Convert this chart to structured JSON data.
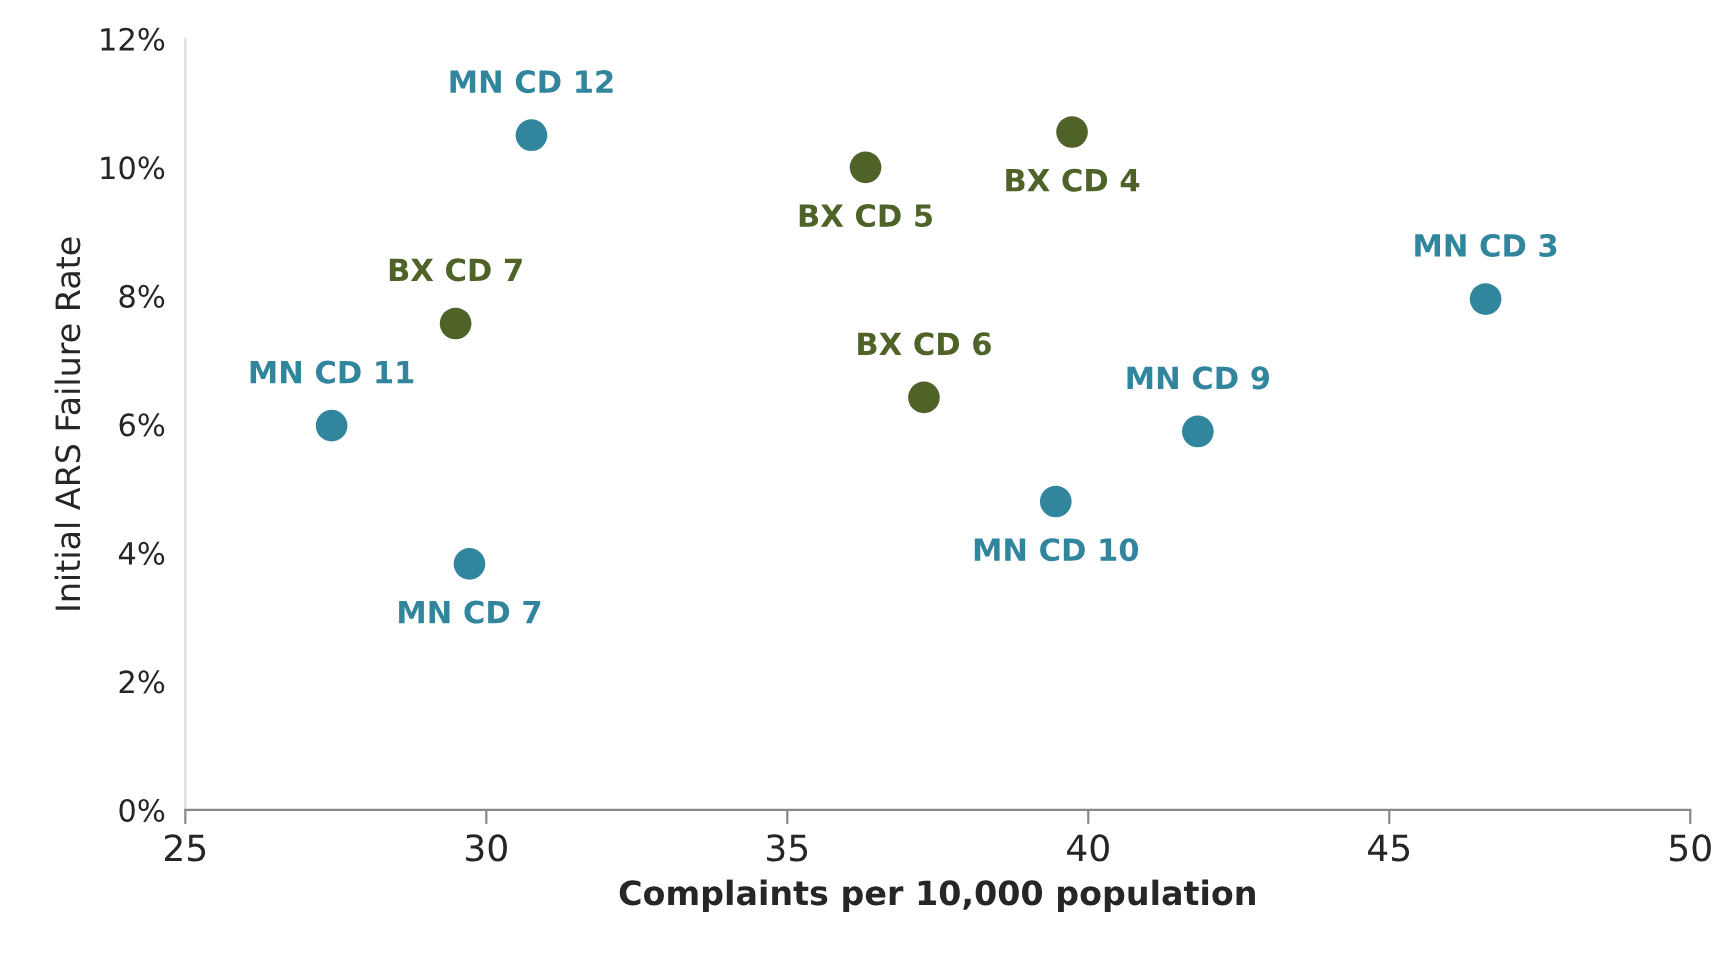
{
  "chart_data": {
    "type": "scatter",
    "xlabel": "Complaints per 10,000 population",
    "ylabel": "Initial ARS Failure Rate",
    "series": [
      {
        "color": "#31859c",
        "x": [
          30.75,
          46.6,
          27.43,
          41.82,
          39.46,
          29.72
        ],
        "values": [
          10.5,
          7.95,
          5.98,
          5.89,
          4.8,
          3.83
        ]
      },
      {
        "color": "#4f6228",
        "x": [
          39.73,
          36.3,
          29.49,
          37.27
        ],
        "values": [
          10.55,
          10.0,
          7.57,
          6.42
        ]
      }
    ],
    "annotations": [
      {
        "text": "MN CD 12",
        "x": 30.75,
        "y": 10.5
      },
      {
        "text": "MN CD 3",
        "x": 46.6,
        "y": 7.95
      },
      {
        "text": "MN CD 11",
        "x": 27.43,
        "y": 5.98
      },
      {
        "text": "MN CD 9",
        "x": 41.82,
        "y": 5.89
      },
      {
        "text": "MN CD 10",
        "x": 39.46,
        "y": 4.8
      },
      {
        "text": "MN CD 7",
        "x": 29.72,
        "y": 3.83
      },
      {
        "text": "BX CD 4",
        "x": 39.73,
        "y": 10.55
      },
      {
        "text": "BX CD 5",
        "x": 36.3,
        "y": 10.0
      },
      {
        "text": "BX CD 7",
        "x": 29.49,
        "y": 7.57
      },
      {
        "text": "BX CD 6",
        "x": 37.27,
        "y": 6.42
      }
    ],
    "xlim": [
      25,
      50
    ],
    "xticks": [
      25,
      30,
      35,
      40,
      45,
      50
    ],
    "ylim": [
      0,
      12
    ],
    "yticks": [
      {
        "value": 0,
        "label": "0%"
      },
      {
        "value": 2,
        "label": "2%"
      },
      {
        "value": 4,
        "label": "4%"
      },
      {
        "value": 6,
        "label": "6%"
      },
      {
        "value": 8,
        "label": "8%"
      },
      {
        "value": 10,
        "label": "10%"
      },
      {
        "value": 12,
        "label": "12%"
      }
    ],
    "marker": "circle",
    "grid": false,
    "legend": false
  }
}
